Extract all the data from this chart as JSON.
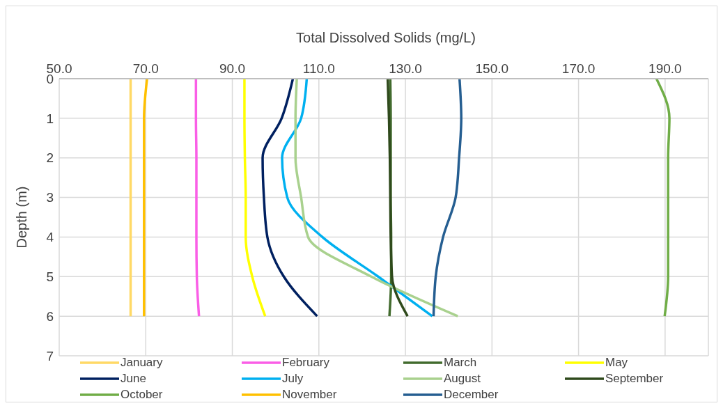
{
  "chart_data": {
    "type": "line",
    "xlabel": "Total Dissolved Solids (mg/L)",
    "ylabel": "Depth (m)",
    "xlim": [
      50,
      200
    ],
    "xticks": [
      {
        "value": 50,
        "label": "50.0"
      },
      {
        "value": 70,
        "label": "70.0"
      },
      {
        "value": 90,
        "label": "90.0"
      },
      {
        "value": 110,
        "label": "110.0"
      },
      {
        "value": 130,
        "label": "130.0"
      },
      {
        "value": 150,
        "label": "150.0"
      },
      {
        "value": 170,
        "label": "170.0"
      },
      {
        "value": 190,
        "label": "190.0"
      }
    ],
    "ylim": [
      7,
      0
    ],
    "yticks": [
      0,
      1,
      2,
      3,
      4,
      5,
      6,
      7
    ],
    "grid": true,
    "legend": "bottom",
    "marker": "none",
    "line_style": "solid",
    "series": [
      {
        "name": "January",
        "color": "#ffd966",
        "x": [
          66.5,
          66.5,
          66.5,
          66.5,
          66.5,
          66.5,
          66.5
        ],
        "values": [
          0,
          1,
          2,
          3,
          4,
          5,
          6
        ]
      },
      {
        "name": "February",
        "color": "#fa5ee6",
        "x": [
          81.6,
          81.6,
          81.7,
          81.7,
          81.7,
          81.8,
          82.3
        ],
        "values": [
          0,
          1,
          2,
          3,
          4,
          5,
          6
        ]
      },
      {
        "name": "March",
        "color": "#426b2e",
        "x": [
          126.5,
          126.6,
          126.6,
          126.6,
          126.7,
          126.7,
          126.3
        ],
        "values": [
          0,
          1,
          2,
          3,
          4,
          5,
          6
        ]
      },
      {
        "name": "May",
        "color": "#ffff00",
        "x": [
          92.8,
          92.8,
          92.9,
          93.1,
          93.1,
          94.6,
          97.6
        ],
        "values": [
          0,
          1,
          2,
          3,
          4,
          5,
          6
        ]
      },
      {
        "name": "June",
        "color": "#002060",
        "x": [
          104,
          101.4,
          97,
          97.3,
          98.1,
          101.9,
          109.6
        ],
        "values": [
          0,
          1,
          2,
          3,
          4,
          5,
          6
        ]
      },
      {
        "name": "July",
        "color": "#00b0f0",
        "x": [
          107.2,
          105.9,
          101.5,
          102.7,
          110.8,
          123.7,
          136.2
        ],
        "values": [
          0,
          1,
          2,
          3,
          4,
          5,
          6
        ]
      },
      {
        "name": "August",
        "color": "#a9d18e",
        "x": [
          104.9,
          104.6,
          104.6,
          105.9,
          107.5,
          122.1,
          142.1
        ],
        "values": [
          0,
          1,
          2,
          3,
          4,
          5,
          6
        ]
      },
      {
        "name": "September",
        "color": "#2f4a1c",
        "x": [
          125.9,
          126.2,
          126.4,
          126.5,
          126.6,
          126.9,
          130.5
        ],
        "values": [
          0,
          1,
          2,
          3,
          4,
          5,
          6
        ]
      },
      {
        "name": "October",
        "color": "#70ad47",
        "x": [
          188,
          191,
          190.7,
          190.7,
          190.7,
          190.7,
          189.9
        ],
        "values": [
          0,
          1,
          2,
          3,
          4,
          5,
          6
        ]
      },
      {
        "name": "November",
        "color": "#ffc000",
        "x": [
          70.3,
          69.6,
          69.6,
          69.6,
          69.6,
          69.6,
          69.6
        ],
        "values": [
          0,
          1,
          2,
          3,
          4,
          5,
          6
        ]
      },
      {
        "name": "December",
        "color": "#255e91",
        "x": [
          142.5,
          142.9,
          142.4,
          141.6,
          138.7,
          137,
          136.5
        ],
        "values": [
          0,
          1,
          2,
          3,
          4,
          5,
          6
        ]
      }
    ]
  }
}
